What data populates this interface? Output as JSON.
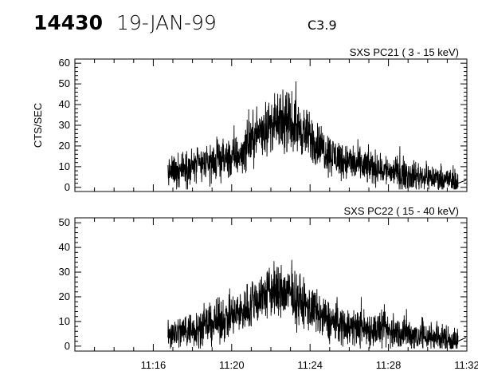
{
  "header": {
    "event_id": "14430",
    "date": "19-JAN-99",
    "flare_class": "C3.9"
  },
  "chart_data": [
    {
      "type": "line",
      "title": "SXS PC21  (  3 - 15 keV)",
      "ylabel": "CTS/SEC",
      "xlabel": "",
      "x_unit": "time (hh:mm)",
      "xlim": [
        "11:12",
        "11:32"
      ],
      "ylim": [
        -2,
        62
      ],
      "yticks": [
        0,
        10,
        20,
        30,
        40,
        50,
        60
      ],
      "xticks": [
        "11:16",
        "11:20",
        "11:24",
        "11:28",
        "11:32"
      ],
      "data_start": "11:16.75",
      "data_end": "11:31.55",
      "series": [
        {
          "x": [
            "11:16.75",
            "11:17.5",
            "11:18",
            "11:19",
            "11:20",
            "11:20.5",
            "11:21",
            "11:21.5",
            "11:22",
            "11:22.5",
            "11:23",
            "11:23.5",
            "11:24",
            "11:24.5",
            "11:25",
            "11:26",
            "11:27",
            "11:28",
            "11:29",
            "11:30",
            "11:31",
            "11:31.55"
          ],
          "values": [
            7,
            9,
            10,
            12,
            14,
            16,
            23,
            28,
            30,
            31,
            31,
            28,
            24,
            20,
            16,
            12,
            10,
            8,
            6,
            5,
            4,
            2
          ]
        }
      ]
    },
    {
      "type": "line",
      "title": "SXS PC22  ( 15 - 40 keV)",
      "ylabel": "",
      "xlabel": "",
      "x_unit": "time (hh:mm)",
      "xlim": [
        "11:12",
        "11:32"
      ],
      "ylim": [
        -2,
        52
      ],
      "yticks": [
        0,
        10,
        20,
        30,
        40,
        50
      ],
      "xticks": [
        "11:16",
        "11:20",
        "11:24",
        "11:28",
        "11:32"
      ],
      "data_start": "11:16.75",
      "data_end": "11:31.55",
      "series": [
        {
          "x": [
            "11:16.75",
            "11:17.5",
            "11:18",
            "11:19",
            "11:20",
            "11:20.5",
            "11:21",
            "11:21.5",
            "11:22",
            "11:22.5",
            "11:23",
            "11:23.5",
            "11:24",
            "11:24.5",
            "11:25",
            "11:26",
            "11:27",
            "11:28",
            "11:29",
            "11:30",
            "11:31",
            "11:31.55"
          ],
          "values": [
            5,
            6,
            7,
            9,
            12,
            14,
            17,
            20,
            22,
            22,
            21,
            18,
            15,
            12,
            10,
            8,
            7,
            6,
            5,
            4,
            3,
            2
          ]
        }
      ]
    }
  ]
}
